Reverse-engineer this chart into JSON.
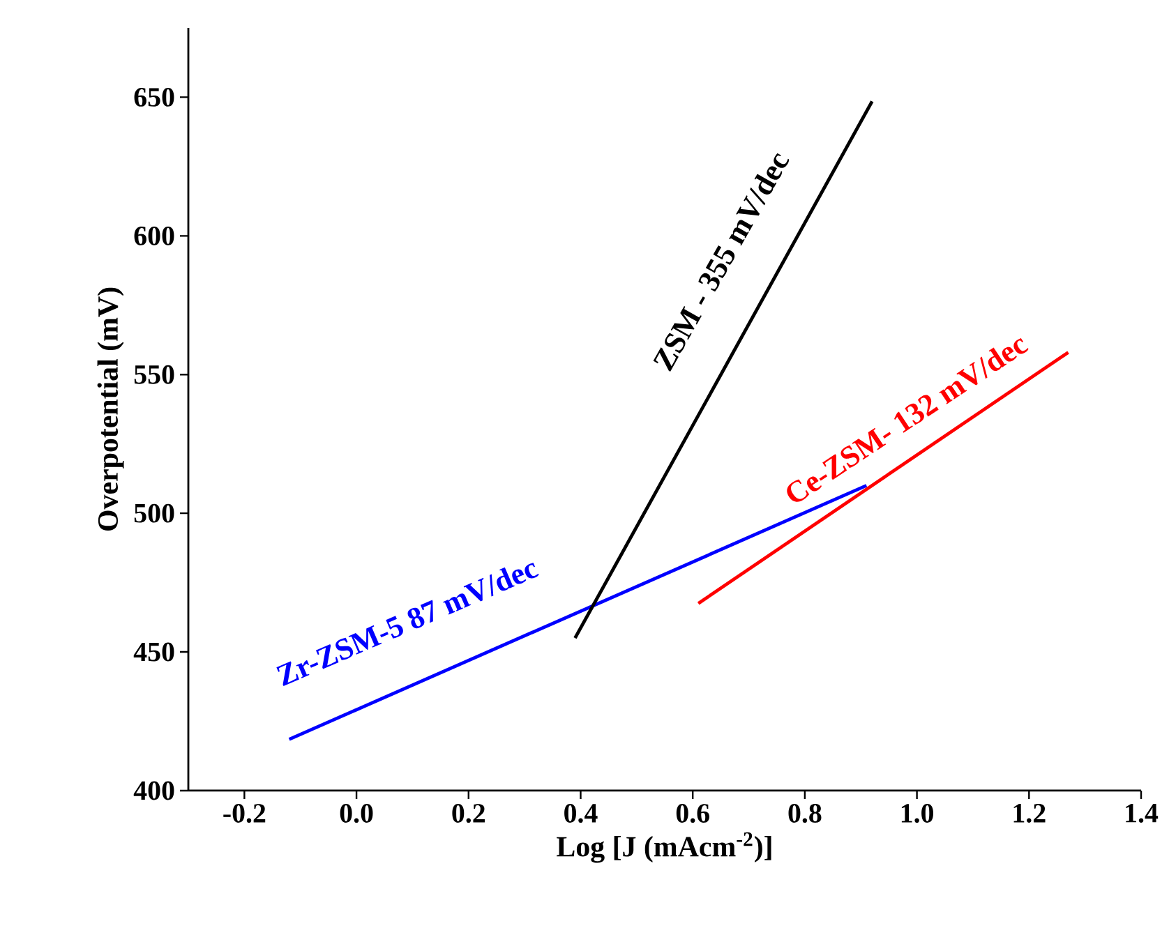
{
  "chart_data": {
    "type": "line",
    "xlabel": "Log [J (mAcm$^{-2}$)]",
    "ylabel": "Overpotential (mV)",
    "xlim": [
      -0.3,
      1.4
    ],
    "ylim": [
      400,
      675
    ],
    "xticks": [
      {
        "value": -0.2,
        "label": "-0.2"
      },
      {
        "value": 0,
        "label": "0.0"
      },
      {
        "value": 0.2,
        "label": "0.2"
      },
      {
        "value": 0.4,
        "label": "0.4"
      },
      {
        "value": 0.6,
        "label": "0.6"
      },
      {
        "value": 0.8,
        "label": "0.8"
      },
      {
        "value": 1,
        "label": "1.0"
      },
      {
        "value": 1.2,
        "label": "1.2"
      },
      {
        "value": 1.4,
        "label": "1.4"
      }
    ],
    "yticks": [
      400,
      450,
      500,
      550,
      600,
      650
    ],
    "series": [
      {
        "color": "#0000ff",
        "x": [
          -0.12,
          0.91
        ],
        "values": [
          418.5,
          510
        ]
      },
      {
        "color": "#000000",
        "x": [
          0.39,
          0.92
        ],
        "values": [
          455,
          648.5
        ]
      },
      {
        "color": "#ff0000",
        "x": [
          0.61,
          1.27
        ],
        "values": [
          467.5,
          558
        ]
      }
    ],
    "annotations": [
      "Zr-ZSM-5 87 mV/dec",
      "ZSM - 355 mV/dec",
      "Ce-ZSM- 132 mV/dec"
    ],
    "grid": false,
    "line_style": "solid",
    "marker": "none"
  }
}
